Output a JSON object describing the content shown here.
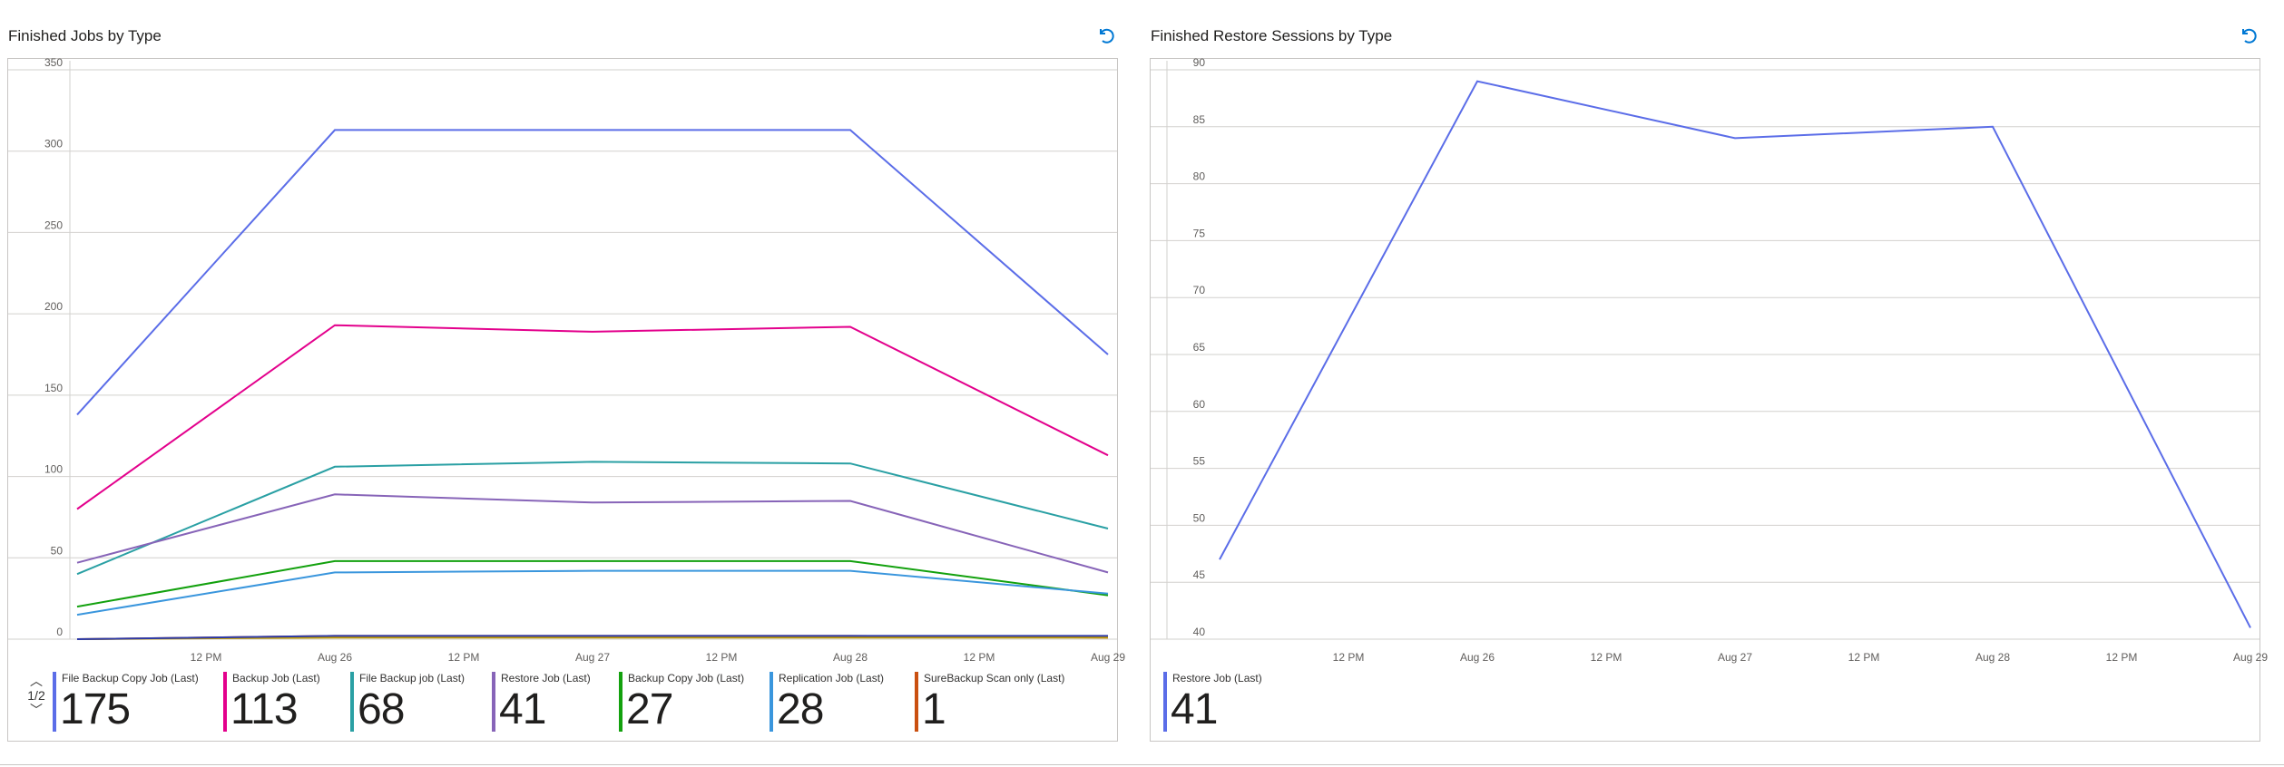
{
  "left_panel": {
    "title": "Finished Jobs by Type",
    "refresh_icon": "refresh-icon",
    "pager": {
      "label": "1/2",
      "up_icon": "chevron-up-icon",
      "down_icon": "chevron-down-icon"
    },
    "legend": [
      {
        "label": "File Backup Copy Job (Last)",
        "value": "175",
        "color": "#5b6de8"
      },
      {
        "label": "Backup Job (Last)",
        "value": "113",
        "color": "#e3008c"
      },
      {
        "label": "File Backup job (Last)",
        "value": "68",
        "color": "#2aa0a4"
      },
      {
        "label": "Restore Job (Last)",
        "value": "41",
        "color": "#8764b8"
      },
      {
        "label": "Backup Copy Job (Last)",
        "value": "27",
        "color": "#13a10e"
      },
      {
        "label": "Replication Job (Last)",
        "value": "28",
        "color": "#3a96dd"
      },
      {
        "label": "SureBackup Scan only (Last)",
        "value": "1",
        "color": "#ca5010"
      }
    ]
  },
  "right_panel": {
    "title": "Finished Restore Sessions by Type",
    "refresh_icon": "refresh-icon",
    "legend": [
      {
        "label": "Restore Job (Last)",
        "value": "41",
        "color": "#5b6de8"
      }
    ]
  },
  "chart_data": [
    {
      "type": "line",
      "title": "Finished Jobs by Type",
      "x": [
        "Aug 25 06:00",
        "Aug 26 06:00",
        "Aug 27 06:00",
        "Aug 28 06:00",
        "Aug 29 06:00"
      ],
      "x_ticks": [
        "12 PM",
        "Aug 26",
        "12 PM",
        "Aug 27",
        "12 PM",
        "Aug 28",
        "12 PM",
        "Aug 29"
      ],
      "ylim": [
        0,
        350
      ],
      "y_ticks": [
        0,
        50,
        100,
        150,
        200,
        250,
        300,
        350
      ],
      "grid": true,
      "series": [
        {
          "name": "File Backup Copy Job (Last)",
          "color": "#5b6de8",
          "values": [
            138,
            313,
            313,
            313,
            175
          ]
        },
        {
          "name": "Backup Job (Last)",
          "color": "#e3008c",
          "values": [
            80,
            193,
            189,
            192,
            113
          ]
        },
        {
          "name": "File Backup job (Last)",
          "color": "#2aa0a4",
          "values": [
            40,
            106,
            109,
            108,
            68
          ]
        },
        {
          "name": "Restore Job (Last)",
          "color": "#8764b8",
          "values": [
            47,
            89,
            84,
            85,
            41
          ]
        },
        {
          "name": "Backup Copy Job (Last)",
          "color": "#13a10e",
          "values": [
            20,
            48,
            48,
            48,
            27
          ]
        },
        {
          "name": "Replication Job (Last)",
          "color": "#3a96dd",
          "values": [
            15,
            41,
            42,
            42,
            28
          ]
        },
        {
          "name": "SureBackup Scan only (Last)",
          "color": "#ca5010",
          "values": [
            0,
            2,
            2,
            2,
            1
          ]
        },
        {
          "name": "",
          "color": "#c19c00",
          "values": [
            0,
            1,
            1,
            1,
            1
          ]
        },
        {
          "name": "",
          "color": "#2d3aa8",
          "values": [
            0,
            2,
            2,
            2,
            2
          ]
        }
      ]
    },
    {
      "type": "line",
      "title": "Finished Restore Sessions by Type",
      "x": [
        "Aug 25 06:00",
        "Aug 26 06:00",
        "Aug 27 06:00",
        "Aug 28 06:00",
        "Aug 29 06:00"
      ],
      "x_ticks": [
        "12 PM",
        "Aug 26",
        "12 PM",
        "Aug 27",
        "12 PM",
        "Aug 28",
        "12 PM",
        "Aug 29"
      ],
      "ylim": [
        40,
        90
      ],
      "y_ticks": [
        40,
        45,
        50,
        55,
        60,
        65,
        70,
        75,
        80,
        85,
        90
      ],
      "grid": true,
      "series": [
        {
          "name": "Restore Job (Last)",
          "color": "#5b6de8",
          "values": [
            47,
            89,
            84,
            85,
            41
          ]
        }
      ]
    }
  ]
}
